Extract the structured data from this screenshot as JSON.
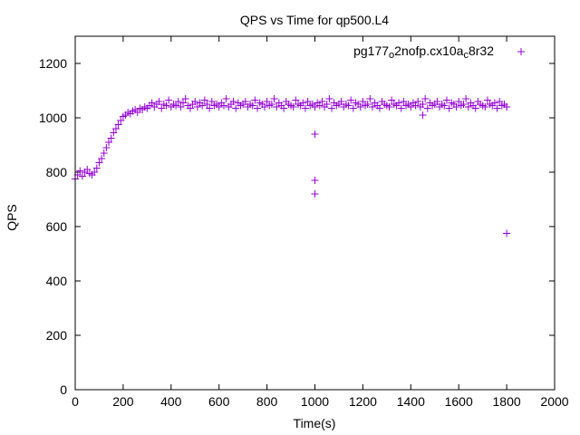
{
  "chart_data": {
    "type": "scatter",
    "title": "QPS vs Time for qp500.L4",
    "xlabel": "Time(s)",
    "ylabel": "QPS",
    "xlim": [
      0,
      2000
    ],
    "ylim": [
      0,
      1280
    ],
    "xticks": [
      0,
      200,
      400,
      600,
      800,
      1000,
      1200,
      1400,
      1600,
      1800,
      2000
    ],
    "yticks": [
      0,
      200,
      400,
      600,
      800,
      1000,
      1200
    ],
    "grid": false,
    "legend_position": "top-right",
    "series": [
      {
        "name": "pg177_o2nofp.cx10a_c8r32",
        "name_parts": [
          "pg177",
          "o",
          "2nofp.cx10a",
          "c",
          "8r32"
        ],
        "color": "#9400d3",
        "marker": "+",
        "x_start": 0,
        "x_step": 10,
        "values": [
          775,
          790,
          805,
          785,
          800,
          810,
          795,
          790,
          800,
          815,
          835,
          850,
          870,
          890,
          910,
          925,
          945,
          960,
          975,
          990,
          1005,
          1010,
          1020,
          1015,
          1025,
          1030,
          1020,
          1035,
          1030,
          1040,
          1035,
          1045,
          1055,
          1040,
          1050,
          1060,
          1035,
          1050,
          1045,
          1065,
          1040,
          1050,
          1045,
          1060,
          1040,
          1055,
          1070,
          1045,
          1035,
          1050,
          1060,
          1040,
          1055,
          1045,
          1065,
          1050,
          1035,
          1060,
          1045,
          1050,
          1040,
          1055,
          1045,
          1070,
          1040,
          1050,
          1060,
          1035,
          1055,
          1045,
          1050,
          1060,
          1040,
          1050,
          1045,
          1065,
          1035,
          1055,
          1050,
          1040,
          1060,
          1045,
          1050,
          1070,
          1040,
          1055,
          1045,
          1035,
          1060,
          1050,
          1045,
          1040,
          1065,
          1050,
          1045,
          1055,
          1035,
          1060,
          1045,
          1050,
          1040,
          1055,
          1045,
          1060,
          1040,
          1050,
          1070,
          1035,
          1055,
          1045,
          1050,
          1060,
          1040,
          1050,
          1045,
          1065,
          1035,
          1055,
          1050,
          1040,
          1060,
          1045,
          1050,
          1070,
          1040,
          1055,
          1045,
          1035,
          1060,
          1050,
          1045,
          1040,
          1065,
          1050,
          1045,
          1055,
          1035,
          1060,
          1045,
          1050,
          1040,
          1055,
          1045,
          1060,
          1040,
          1050,
          1070,
          1035,
          1055,
          1045,
          1050,
          1060,
          1040,
          1050,
          1045,
          1065,
          1035,
          1055,
          1050,
          1040,
          1060,
          1045,
          1050,
          1070,
          1040,
          1055,
          1045,
          1035,
          1060,
          1050,
          1045,
          1040,
          1065,
          1050,
          1045,
          1055,
          1035,
          1060,
          1045,
          1050,
          1040
        ],
        "extra_points": [
          [
            1000,
            940
          ],
          [
            1000,
            770
          ],
          [
            1000,
            720
          ],
          [
            1450,
            1010
          ],
          [
            1800,
            575
          ],
          [
            1800,
            1040
          ]
        ]
      }
    ]
  }
}
